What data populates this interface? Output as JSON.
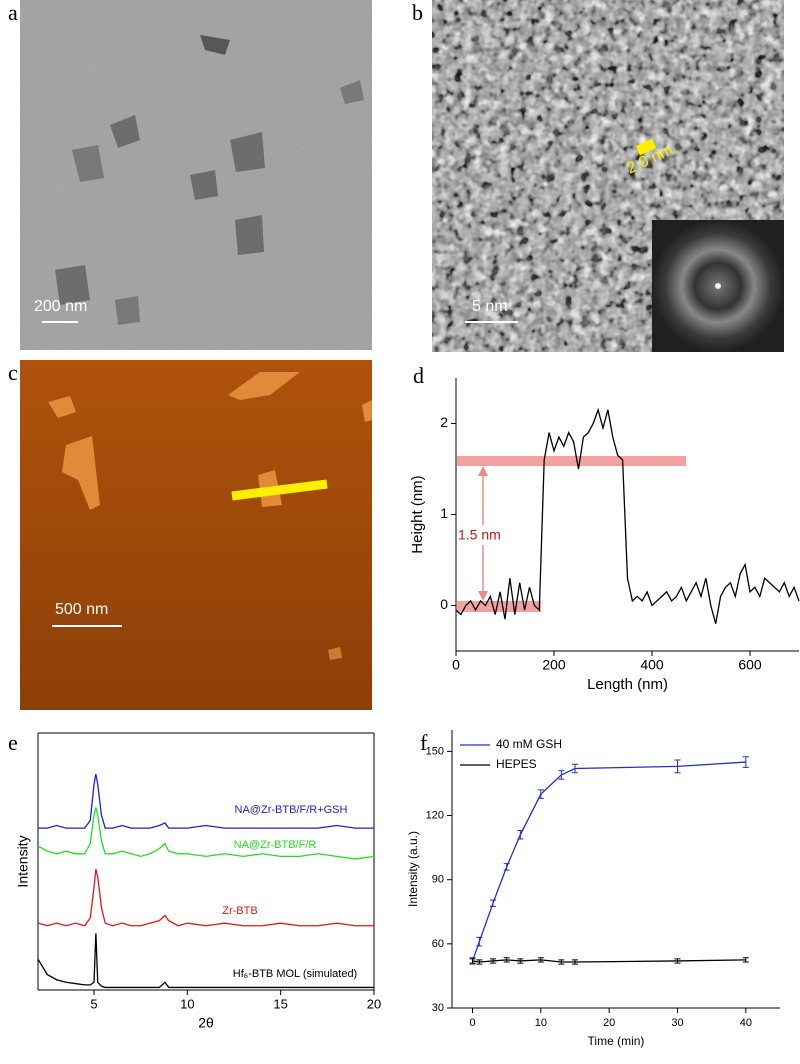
{
  "images": [
    {
      "panel_label": "a",
      "scale_bar": "200 nm"
    },
    {
      "panel_label": "b",
      "scale_bar": "5 nm",
      "annotation": "2.0 nm"
    },
    {
      "panel_label": "c",
      "scale_bar": "500 nm"
    }
  ],
  "chart_data": [
    {
      "type": "line",
      "panel_label": "d",
      "x_label": "Length (nm)",
      "y_label": "Height (nm)",
      "annotation": "1.5 nm",
      "x": [
        0,
        10,
        20,
        30,
        40,
        50,
        60,
        70,
        80,
        90,
        100,
        110,
        120,
        130,
        140,
        150,
        160,
        170,
        180,
        190,
        200,
        210,
        220,
        230,
        240,
        250,
        260,
        270,
        280,
        290,
        300,
        310,
        320,
        330,
        340,
        350,
        360,
        370,
        380,
        390,
        400,
        410,
        420,
        430,
        440,
        450,
        460,
        470,
        480,
        490,
        500,
        510,
        520,
        530,
        540,
        550,
        560,
        570,
        580,
        590,
        600,
        610,
        620,
        630,
        640,
        650,
        660,
        670,
        680,
        690,
        700
      ],
      "series": [
        {
          "color": "#000000",
          "values": [
            -0.05,
            -0.1,
            0,
            0.05,
            -0.05,
            0.05,
            0,
            0.1,
            -0.1,
            0.15,
            -0.15,
            0.3,
            -0.1,
            0.25,
            -0.05,
            0.2,
            0,
            -0.05,
            1.6,
            1.9,
            1.7,
            1.85,
            1.75,
            1.9,
            1.8,
            1.5,
            1.85,
            1.9,
            2.0,
            2.15,
            1.95,
            2.15,
            1.85,
            1.65,
            1.6,
            0.3,
            0.05,
            0.1,
            0.05,
            0.15,
            0,
            0.05,
            0.1,
            0.15,
            0.05,
            0.1,
            0.2,
            0.05,
            0.15,
            0.25,
            0.1,
            0.3,
            0,
            -0.2,
            0.1,
            0.2,
            0.25,
            0.1,
            0.35,
            0.45,
            0.15,
            0.2,
            0.1,
            0.3,
            0.25,
            0.2,
            0.15,
            0.25,
            0.1,
            0.2,
            0.05
          ]
        }
      ],
      "xlim": [
        0,
        700
      ],
      "xticks": [
        0,
        200,
        400,
        600
      ],
      "ylim": [
        -0.5,
        2.5
      ],
      "yticks": [
        0,
        1,
        2
      ]
    },
    {
      "type": "line",
      "panel_label": "e",
      "x_label": "2θ",
      "y_label": "Intensity",
      "x": [
        2,
        2.5,
        3,
        3.5,
        4,
        4.5,
        4.8,
        5,
        5.1,
        5.2,
        5.4,
        5.6,
        6,
        6.5,
        7,
        7.5,
        8,
        8.5,
        8.8,
        9,
        9.5,
        10,
        11,
        12,
        13,
        14,
        15,
        16,
        17,
        18,
        19,
        20
      ],
      "series": [
        {
          "name": "NA@Zr-BTB/F/R+GSH",
          "color": "#1f1fd6",
          "values": [
            63,
            63,
            64,
            63,
            63,
            63,
            66,
            80,
            84,
            80,
            68,
            63,
            63,
            64,
            63,
            63,
            63,
            64,
            65,
            63,
            63,
            63,
            64,
            63,
            63,
            63,
            63,
            63,
            63,
            64,
            63,
            63
          ]
        },
        {
          "name": "NA@Zr-BTB/F/R",
          "color": "#22e022",
          "values": [
            56,
            54,
            53,
            54,
            53,
            53,
            57,
            68,
            71,
            68,
            58,
            53,
            53,
            54,
            53,
            52,
            53,
            55,
            57,
            54,
            53,
            53,
            52,
            53,
            52,
            53,
            52,
            52,
            53,
            52,
            51,
            52
          ]
        },
        {
          "name": "Zr-BTB",
          "color": "#e01818",
          "values": [
            26,
            25,
            26,
            25,
            26,
            25,
            28,
            40,
            47,
            44,
            32,
            26,
            25,
            26,
            25,
            25,
            26,
            27,
            29,
            27,
            25,
            26,
            25,
            26,
            25,
            25,
            26,
            25,
            25,
            26,
            25,
            25
          ]
        },
        {
          "name": "Hf₆-BTB MOL (simulated)",
          "color": "#000000",
          "values": [
            12,
            6,
            4,
            3,
            2.5,
            2,
            2,
            3,
            22,
            3,
            1.5,
            1,
            1,
            1,
            1,
            1,
            1,
            1,
            3,
            1,
            1,
            1,
            1,
            1,
            1,
            1,
            1,
            1,
            1,
            1,
            1,
            1
          ]
        }
      ],
      "xlim": [
        2,
        20
      ],
      "xticks": [
        5,
        10,
        15,
        20
      ],
      "ylim": [
        0,
        100
      ],
      "yticks": []
    },
    {
      "type": "line",
      "panel_label": "f",
      "x_label": "Time (min)",
      "y_label": "Intensity (a.u.)",
      "legend": "upper left",
      "x": [
        0,
        1,
        3,
        5,
        7,
        10,
        13,
        15,
        30,
        40
      ],
      "series": [
        {
          "name": "40 mM GSH",
          "color": "#2030c8",
          "values": [
            52,
            61,
            79,
            96,
            111,
            130,
            139,
            142,
            143,
            145
          ],
          "errors": [
            1.5,
            2,
            1.5,
            1.5,
            2,
            2,
            2,
            2,
            3,
            2.5
          ]
        },
        {
          "name": "HEPES",
          "color": "#000000",
          "values": [
            52,
            51.5,
            52,
            52.5,
            52,
            52.5,
            51.5,
            51.5,
            52,
            52.5
          ],
          "errors": [
            1,
            1,
            1,
            1,
            1,
            1,
            1,
            1,
            1,
            1
          ]
        }
      ],
      "xlim": [
        -3,
        45
      ],
      "xticks": [
        0,
        10,
        20,
        30,
        40
      ],
      "ylim": [
        30,
        160
      ],
      "yticks": [
        30,
        60,
        90,
        120,
        150
      ]
    }
  ]
}
